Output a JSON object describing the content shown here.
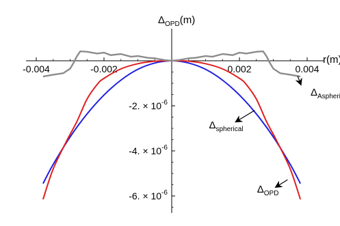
{
  "chart_data": {
    "type": "line",
    "title": "",
    "xlabel": "r(m)",
    "ylabel": "Δ_OPD(m)",
    "xlim": [
      -0.0043,
      0.0045
    ],
    "ylim": [
      -6.8e-06,
      1e-06
    ],
    "x_ticks": [
      {
        "value": -0.004,
        "label": "-0.004"
      },
      {
        "value": -0.002,
        "label": "-0.002"
      },
      {
        "value": 0.002,
        "label": "0.002"
      },
      {
        "value": 0.004,
        "label": "0.004"
      }
    ],
    "y_ticks": [
      {
        "value": -2e-06,
        "mantissa": "-2.",
        "times": " × ",
        "base": "10",
        "exponent": "-6"
      },
      {
        "value": -4e-06,
        "mantissa": "-4.",
        "times": " × ",
        "base": "10",
        "exponent": "-6"
      },
      {
        "value": -6e-06,
        "mantissa": "-6.",
        "times": " × ",
        "base": "10",
        "exponent": "-6"
      }
    ],
    "series": [
      {
        "name": "Δ_spherical",
        "color": "#1f1fe0",
        "x": [
          -0.0038,
          -0.0035,
          -0.003,
          -0.0025,
          -0.002,
          -0.0015,
          -0.001,
          -0.0005,
          0.0,
          0.0005,
          0.001,
          0.0015,
          0.002,
          0.0025,
          0.003,
          0.0035,
          0.0038
        ],
        "y": [
          -5.45e-06,
          -4.6e-06,
          -3.38e-06,
          -2.36e-06,
          -1.52e-06,
          -8.6e-07,
          -3.8e-07,
          -1e-07,
          0.0,
          -1e-07,
          -3.8e-07,
          -8.6e-07,
          -1.52e-06,
          -2.36e-06,
          -3.38e-06,
          -4.6e-06,
          -5.45e-06
        ]
      },
      {
        "name": "Δ_OPD",
        "color": "#e01f1f",
        "x": [
          -0.0038,
          -0.0035,
          -0.0031,
          -0.0028,
          -0.0025,
          -0.0022,
          -0.002,
          -0.0015,
          -0.001,
          -0.0005,
          0.0,
          0.0005,
          0.001,
          0.0015,
          0.002,
          0.0022,
          0.0025,
          0.0028,
          0.0031,
          0.0035,
          0.0038
        ],
        "y": [
          -6.15e-06,
          -4.8e-06,
          -3.55e-06,
          -2.7e-06,
          -1.7e-06,
          -1.05e-06,
          -7.8e-07,
          -3.6e-07,
          -1.3e-07,
          -2e-08,
          0.0,
          -2e-08,
          -1.3e-07,
          -3.6e-07,
          -7.8e-07,
          -1.05e-06,
          -1.7e-06,
          -2.7e-06,
          -3.55e-06,
          -4.8e-06,
          -6.15e-06
        ]
      },
      {
        "name": "Δ_Aspherica",
        "color": "#8c8c8c",
        "x": [
          -0.0038,
          -0.0035,
          -0.0032,
          -0.003,
          -0.0029,
          -0.0028,
          -0.0027,
          -0.0025,
          -0.0022,
          -0.002,
          -0.0018,
          -0.0015,
          -0.0012,
          -0.001,
          -0.0007,
          -0.0005,
          -0.0002,
          0.0,
          0.0002,
          0.0005,
          0.0007,
          0.001,
          0.0012,
          0.0015,
          0.0018,
          0.002,
          0.0022,
          0.0025,
          0.0027,
          0.0028,
          0.0029,
          0.003,
          0.0032,
          0.0035,
          0.0038
        ],
        "y": [
          -7e-07,
          -6.2e-07,
          -5.5e-07,
          -3.5e-07,
          -1e-07,
          2e-07,
          4.2e-07,
          4e-07,
          3.2e-07,
          3.6e-07,
          2.5e-07,
          3e-07,
          1.8e-07,
          2.1e-07,
          1.3e-07,
          1.1e-07,
          3e-08,
          0.0,
          3e-08,
          1.1e-07,
          1.3e-07,
          2.1e-07,
          1.8e-07,
          3e-07,
          2.5e-07,
          3.6e-07,
          3.2e-07,
          4e-07,
          4.2e-07,
          2e-07,
          -1e-07,
          -3.5e-07,
          -5.5e-07,
          -6.2e-07,
          -7e-07
        ]
      }
    ],
    "annotations": [
      {
        "key": "aspherica",
        "main": "Δ",
        "sub": "Aspherica",
        "x": 0.0041,
        "y": -1.55e-06,
        "arrow_from": [
          0.00372,
          -6.8e-07
        ],
        "arrow_to": [
          0.00382,
          -1.08e-06
        ]
      },
      {
        "key": "spherical",
        "main": "Δ",
        "sub": "spherical",
        "x": 0.0011,
        "y": -3e-06,
        "arrow_from": [
          0.00245,
          -2.2e-06
        ],
        "arrow_to": [
          0.00188,
          -2.72e-06
        ]
      },
      {
        "key": "opd",
        "main": "Δ",
        "sub": "OPD",
        "x": 0.00252,
        "y": -5.85e-06,
        "arrow_from": [
          0.00342,
          -5.28e-06
        ],
        "arrow_to": [
          0.00306,
          -5.62e-06
        ]
      }
    ],
    "grid": false,
    "legend": "none"
  }
}
